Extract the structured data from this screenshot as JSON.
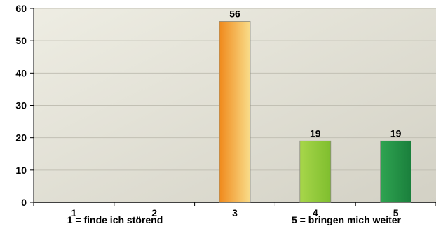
{
  "chart_data": {
    "type": "bar",
    "categories": [
      "1",
      "2",
      "3",
      "4",
      "5"
    ],
    "values": [
      0,
      0,
      56,
      19,
      19
    ],
    "data_labels": [
      "",
      "",
      "56",
      "19",
      "19"
    ],
    "ylim": [
      0,
      60
    ],
    "yticks": [
      "0",
      "10",
      "20",
      "30",
      "40",
      "50",
      "60"
    ],
    "grid": true,
    "legend": "none",
    "x_notes": {
      "left": "1 = finde ich störend",
      "right": "5 = bringen mich weiter"
    },
    "bar_gradients": [
      [
        "#f1a53a",
        "#f1a53a"
      ],
      [
        "#f1a53a",
        "#f1a53a"
      ],
      [
        "#f08a1c",
        "#f9dd8a"
      ],
      [
        "#a7d64a",
        "#7fbe2e"
      ],
      [
        "#2fa451",
        "#1a7f3c"
      ]
    ],
    "plot_background": [
      "#eeede3",
      "#d3d1c5"
    ]
  }
}
